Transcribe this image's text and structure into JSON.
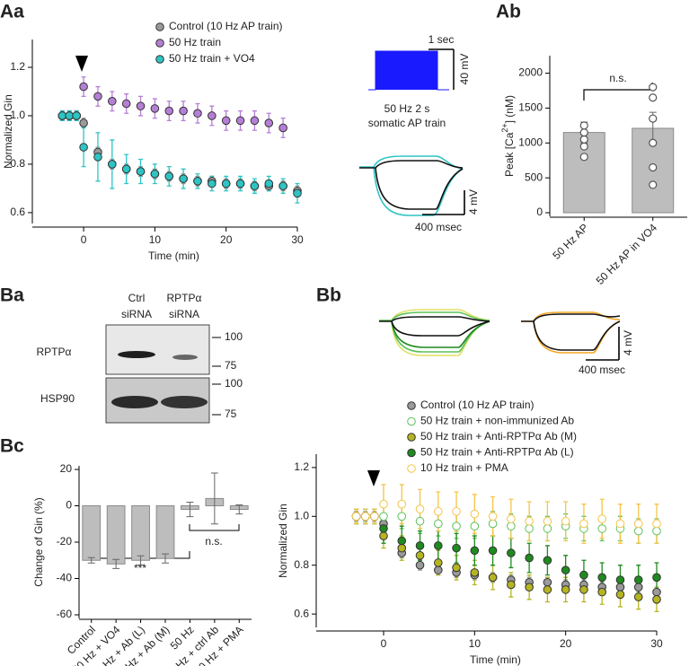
{
  "chart_data": [
    {
      "type": "line",
      "y_label": "Normalized Gin",
      "x_label": "Time (min)",
      "xlim": [
        -7.2,
        30
      ],
      "xticks": [
        0,
        10,
        20,
        30
      ],
      "ylim": [
        0.57,
        1.3
      ],
      "yticks": [
        {
          "value": 0.6,
          "label": "0.6"
        },
        {
          "value": 0.8,
          "label": "0.8"
        },
        {
          "value": 1,
          "label": "1.0"
        },
        {
          "value": 1.2,
          "label": "1.2"
        }
      ],
      "x": [
        -3,
        -2,
        -1,
        0,
        2,
        4,
        6,
        8,
        10,
        12,
        14,
        16,
        18,
        20,
        22,
        24,
        26,
        28,
        30
      ],
      "series": [
        {
          "name": "Control (10 Hz AP train)",
          "color": "#9a9a9a",
          "open": false,
          "values": [
            1,
            1,
            1,
            0.97,
            0.85,
            0.8,
            0.78,
            0.77,
            0.76,
            0.75,
            0.74,
            0.73,
            0.73,
            0.72,
            0.72,
            0.71,
            0.71,
            0.71,
            0.69
          ],
          "errors": [
            0.02,
            0.02,
            0.02,
            0.02,
            0.02,
            0.02,
            0.02,
            0.02,
            0.02,
            0.02,
            0.02,
            0.02,
            0.02,
            0.02,
            0.02,
            0.02,
            0.02,
            0.02,
            0.02
          ]
        },
        {
          "name": "50 Hz train",
          "color": "#b57fd6",
          "open": false,
          "values": [
            1,
            1,
            1,
            1.12,
            1.08,
            1.06,
            1.05,
            1.04,
            1.03,
            1.02,
            1.02,
            1.01,
            1,
            0.98,
            0.98,
            0.98,
            0.97,
            0.95,
            null
          ],
          "errors": [
            0.02,
            0.02,
            0.02,
            0.04,
            0.04,
            0.04,
            0.04,
            0.04,
            0.04,
            0.04,
            0.04,
            0.04,
            0.04,
            0.04,
            0.04,
            0.04,
            0.04,
            0.04,
            null
          ]
        },
        {
          "name": "50 Hz train + VO4",
          "color": "#2ec4c4",
          "open": false,
          "values": [
            1,
            1,
            1,
            0.87,
            0.83,
            0.8,
            0.78,
            0.77,
            0.76,
            0.75,
            0.74,
            0.73,
            0.72,
            0.72,
            0.72,
            0.71,
            0.72,
            0.71,
            0.68
          ],
          "errors": [
            0.02,
            0.02,
            0.02,
            0.08,
            0.1,
            0.1,
            0.06,
            0.05,
            0.04,
            0.04,
            0.04,
            0.03,
            0.03,
            0.03,
            0.03,
            0.03,
            0.03,
            0.03,
            0.04
          ]
        }
      ]
    },
    {
      "type": "bar",
      "y_label": [
        "Peak [Ca",
        "2+",
        "] (nM)"
      ],
      "color": "#bdbdbd",
      "ylim": [
        0,
        2200
      ],
      "yticks": [
        0,
        500,
        1000,
        1500,
        2000
      ],
      "categories": [
        "50 Hz AP",
        "50 Hz AP in VO4"
      ],
      "values": [
        1150,
        1210
      ],
      "errors": [
        150,
        230
      ],
      "points": [
        [
          800,
          950,
          1050,
          1150,
          1250
        ],
        [
          1800,
          1650,
          1350,
          1000,
          650,
          400
        ]
      ],
      "annotations": [
        "n.s."
      ]
    },
    {
      "type": "bar",
      "y_label": "Change of Gin (%)",
      "color": "#bdbdbd",
      "ylim": [
        -60,
        20
      ],
      "yticks": [
        -60,
        -40,
        -20,
        0,
        20
      ],
      "categories": [
        "Control",
        "50 Hz + VO4",
        "50 Hz + Ab (L)",
        "50 Hz + Ab (M)",
        "50 Hz",
        "50 Hz + ctrl Ab",
        "10 Hz + PMA"
      ],
      "values": [
        -30,
        -32,
        -30,
        -29,
        -2,
        4,
        -2
      ],
      "errors": [
        1.5,
        2.5,
        2.5,
        2.5,
        4,
        14,
        2.5
      ],
      "annotations": [
        "***",
        "n.s."
      ]
    },
    {
      "type": "line",
      "y_label": "Normalized Gin",
      "x_label": "Time (min)",
      "xlim": [
        -7.4,
        30
      ],
      "xticks": [
        0,
        10,
        20,
        30
      ],
      "ylim": [
        0.56,
        1.24
      ],
      "yticks": [
        {
          "value": 0.6,
          "label": "0.6"
        },
        {
          "value": 0.8,
          "label": "0.8"
        },
        {
          "value": 1,
          "label": "1.0"
        },
        {
          "value": 1.2,
          "label": "1.2"
        }
      ],
      "x": [
        -3,
        -2,
        -1,
        0,
        2,
        4,
        6,
        8,
        10,
        12,
        14,
        16,
        18,
        20,
        22,
        24,
        26,
        28,
        30
      ],
      "series": [
        {
          "name": "Control (10 Hz AP train)",
          "color": "#9a9a9a",
          "open": false,
          "values": [
            1,
            1,
            1,
            0.97,
            0.85,
            0.8,
            0.78,
            0.77,
            0.76,
            0.75,
            0.74,
            0.73,
            0.73,
            0.72,
            0.72,
            0.71,
            0.71,
            0.71,
            0.69
          ],
          "errors": [
            0.02,
            0.02,
            0.02,
            0.02,
            0.02,
            0.02,
            0.02,
            0.02,
            0.02,
            0.02,
            0.02,
            0.02,
            0.02,
            0.02,
            0.02,
            0.02,
            0.02,
            0.02,
            0.02
          ]
        },
        {
          "name": "50 Hz train + non-immunized Ab",
          "color": "#5cc25c",
          "open": true,
          "values": [
            1,
            1,
            1,
            1,
            1,
            0.98,
            0.97,
            0.96,
            0.96,
            0.97,
            0.96,
            0.95,
            0.95,
            0.96,
            0.95,
            0.95,
            0.95,
            0.94,
            0.94
          ],
          "errors": [
            0.03,
            0.03,
            0.03,
            0.05,
            0.05,
            0.05,
            0.05,
            0.05,
            0.05,
            0.05,
            0.05,
            0.05,
            0.05,
            0.05,
            0.05,
            0.05,
            0.05,
            0.05,
            0.05
          ]
        },
        {
          "name": "50 Hz train + Anti-RPTPα  Ab (M)",
          "color": "#b5b522",
          "open": false,
          "values": [
            1,
            1,
            1,
            0.92,
            0.87,
            0.84,
            0.81,
            0.79,
            0.77,
            0.75,
            0.72,
            0.71,
            0.7,
            0.7,
            0.7,
            0.69,
            0.68,
            0.67,
            0.66
          ],
          "errors": [
            0.03,
            0.03,
            0.03,
            0.05,
            0.05,
            0.05,
            0.05,
            0.05,
            0.05,
            0.05,
            0.05,
            0.05,
            0.05,
            0.05,
            0.05,
            0.05,
            0.05,
            0.05,
            0.05
          ]
        },
        {
          "name": "50 Hz train + Anti-RPTPα  Ab (L)",
          "color": "#1f8a1f",
          "open": false,
          "values": [
            1,
            1,
            1,
            0.95,
            0.9,
            0.88,
            0.88,
            0.87,
            0.86,
            0.86,
            0.85,
            0.83,
            0.82,
            0.78,
            0.76,
            0.75,
            0.74,
            0.74,
            0.75
          ],
          "errors": [
            0.03,
            0.03,
            0.03,
            0.06,
            0.06,
            0.06,
            0.06,
            0.06,
            0.06,
            0.06,
            0.06,
            0.06,
            0.06,
            0.06,
            0.06,
            0.06,
            0.06,
            0.06,
            0.06
          ]
        },
        {
          "name": "10 Hz train + PMA",
          "color": "#f5c54a",
          "open": true,
          "values": [
            1,
            1,
            1,
            1.05,
            1.05,
            1.03,
            1.02,
            1.02,
            1.01,
            1,
            0.99,
            0.98,
            0.98,
            0.98,
            0.97,
            0.99,
            0.97,
            0.97,
            0.97
          ],
          "errors": [
            0.03,
            0.03,
            0.03,
            0.08,
            0.08,
            0.08,
            0.08,
            0.08,
            0.08,
            0.08,
            0.08,
            0.08,
            0.08,
            0.08,
            0.08,
            0.08,
            0.08,
            0.08,
            0.08
          ]
        }
      ]
    }
  ],
  "panel_labels": [
    "Aa",
    "Ab",
    "Ba",
    "Bb",
    "Bc"
  ],
  "insets": {
    "aa": {
      "scale_time": "1 sec",
      "scale_mv": "40 mV",
      "caption": [
        "50 Hz 2 s",
        "somatic AP train"
      ],
      "trace_mv": "4 mV",
      "trace_time": "400 msec"
    },
    "bb": {
      "time": "400 msec",
      "mv": "4 mV"
    }
  },
  "blot": {
    "lanes": [
      [
        "Ctrl",
        "siRNA"
      ],
      [
        "RPTPα",
        "siRNA"
      ]
    ],
    "rows": [
      {
        "label": "RPTPα",
        "markers": [
          "100",
          "75"
        ]
      },
      {
        "label": "HSP90",
        "markers": [
          "100",
          "75"
        ]
      }
    ]
  }
}
